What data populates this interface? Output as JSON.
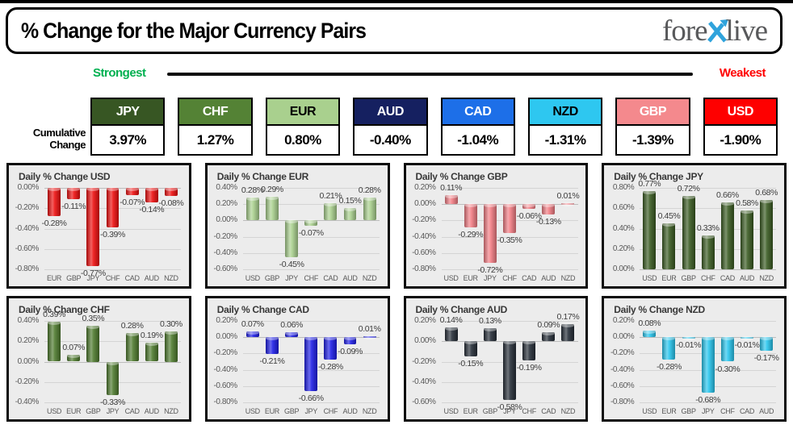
{
  "header": {
    "title": "% Change for the Major Currency Pairs",
    "logo": {
      "part1": "fore",
      "x": "X",
      "part2": "live",
      "x_color": "#2fa3dc",
      "text_color": "#58595b"
    }
  },
  "scale": {
    "strongest_label": "Strongest",
    "weakest_label": "Weakest",
    "strongest_color": "#00b050",
    "weakest_color": "#ff0000"
  },
  "cumulative": {
    "row_label_line1": "Cumulative",
    "row_label_line2": "Change",
    "cards": [
      {
        "code": "JPY",
        "value": "3.97%",
        "bg": "#375623",
        "fg": "#ffffff"
      },
      {
        "code": "CHF",
        "value": "1.27%",
        "bg": "#548235",
        "fg": "#ffffff"
      },
      {
        "code": "EUR",
        "value": "0.80%",
        "bg": "#a9d08e",
        "fg": "#000000"
      },
      {
        "code": "AUD",
        "value": "-0.40%",
        "bg": "#152060",
        "fg": "#ffffff"
      },
      {
        "code": "CAD",
        "value": "-1.04%",
        "bg": "#1d6fe8",
        "fg": "#ffffff"
      },
      {
        "code": "NZD",
        "value": "-1.31%",
        "bg": "#2ec7f0",
        "fg": "#000000"
      },
      {
        "code": "GBP",
        "value": "-1.39%",
        "bg": "#f4898d",
        "fg": "#ffffff"
      },
      {
        "code": "USD",
        "value": "-1.90%",
        "bg": "#fe0000",
        "fg": "#ffffff"
      }
    ]
  },
  "chart_data": [
    {
      "type": "bar",
      "title": "Daily % Change USD",
      "code": "usd",
      "bar_color": "#ed0f0f",
      "categories": [
        "EUR",
        "GBP",
        "JPY",
        "CHF",
        "CAD",
        "AUD",
        "NZD"
      ],
      "values": [
        -0.28,
        -0.11,
        -0.77,
        -0.39,
        -0.07,
        -0.14,
        -0.08
      ],
      "ticks": [
        0.0,
        -0.2,
        -0.4,
        -0.6,
        -0.8
      ],
      "ylim": [
        -0.8,
        0.0
      ],
      "tick_format": "percent",
      "grid": true,
      "legend": false
    },
    {
      "type": "bar",
      "title": "Daily % Change EUR",
      "code": "eur",
      "bar_color": "#a9d08e",
      "categories": [
        "USD",
        "GBP",
        "JPY",
        "CHF",
        "CAD",
        "AUD",
        "NZD"
      ],
      "values": [
        0.28,
        0.29,
        -0.45,
        -0.07,
        0.21,
        0.15,
        0.28
      ],
      "ticks": [
        0.4,
        0.2,
        0.0,
        -0.2,
        -0.4,
        -0.6
      ],
      "ylim": [
        -0.6,
        0.4
      ],
      "tick_format": "percent",
      "grid": true,
      "legend": false
    },
    {
      "type": "bar",
      "title": "Daily % Change GBP",
      "code": "gbp",
      "bar_color": "#f27d84",
      "categories": [
        "USD",
        "EUR",
        "JPY",
        "CHF",
        "CAD",
        "AUD",
        "NZD"
      ],
      "values": [
        0.11,
        -0.29,
        -0.72,
        -0.35,
        -0.06,
        -0.13,
        0.01
      ],
      "ticks": [
        0.2,
        0.0,
        -0.2,
        -0.4,
        -0.6,
        -0.8
      ],
      "ylim": [
        -0.8,
        0.2
      ],
      "tick_format": "percent",
      "grid": true,
      "legend": false
    },
    {
      "type": "bar",
      "title": "Daily % Change JPY",
      "code": "jpy",
      "bar_color": "#3a5b22",
      "categories": [
        "USD",
        "EUR",
        "GBP",
        "CHF",
        "CAD",
        "AUD",
        "NZD"
      ],
      "values": [
        0.77,
        0.45,
        0.72,
        0.33,
        0.66,
        0.58,
        0.68
      ],
      "ticks": [
        0.8,
        0.6,
        0.4,
        0.2,
        0.0
      ],
      "ylim": [
        0.0,
        0.8
      ],
      "tick_format": "percent",
      "grid": true,
      "legend": false
    },
    {
      "type": "bar",
      "title": "Daily % Change CHF",
      "code": "chf",
      "bar_color": "#4e7a2e",
      "categories": [
        "USD",
        "EUR",
        "GBP",
        "JPY",
        "CAD",
        "AUD",
        "NZD"
      ],
      "values": [
        0.39,
        0.07,
        0.35,
        -0.33,
        0.28,
        0.19,
        0.3
      ],
      "ticks": [
        0.4,
        0.2,
        0.0,
        -0.2,
        -0.4
      ],
      "ylim": [
        -0.4,
        0.4
      ],
      "tick_format": "percent",
      "grid": true,
      "legend": false
    },
    {
      "type": "bar",
      "title": "Daily % Change CAD",
      "code": "cad",
      "bar_color": "#1e1ee6",
      "categories": [
        "USD",
        "EUR",
        "GBP",
        "JPY",
        "CHF",
        "AUD",
        "NZD"
      ],
      "values": [
        0.07,
        -0.21,
        0.06,
        -0.66,
        -0.28,
        -0.09,
        0.01
      ],
      "ticks": [
        0.2,
        0.0,
        -0.2,
        -0.4,
        -0.6,
        -0.8
      ],
      "ylim": [
        -0.8,
        0.2
      ],
      "tick_format": "percent",
      "grid": true,
      "legend": false
    },
    {
      "type": "bar",
      "title": "Daily % Change AUD",
      "code": "aud",
      "bar_color": "#262e38",
      "categories": [
        "USD",
        "EUR",
        "GBP",
        "JPY",
        "CHF",
        "CAD",
        "NZD"
      ],
      "values": [
        0.14,
        -0.15,
        0.13,
        -0.58,
        -0.19,
        0.09,
        0.17
      ],
      "ticks": [
        0.2,
        0.0,
        -0.2,
        -0.4,
        -0.6
      ],
      "ylim": [
        -0.6,
        0.2
      ],
      "tick_format": "percent",
      "grid": true,
      "legend": false
    },
    {
      "type": "bar",
      "title": "Daily % Change NZD",
      "code": "nzd",
      "bar_color": "#29c6ee",
      "categories": [
        "USD",
        "EUR",
        "GBP",
        "JPY",
        "CHF",
        "CAD",
        "AUD"
      ],
      "values": [
        0.08,
        -0.28,
        -0.01,
        -0.68,
        -0.3,
        -0.01,
        -0.17
      ],
      "ticks": [
        0.2,
        0.0,
        -0.2,
        -0.4,
        -0.6,
        -0.8
      ],
      "ylim": [
        -0.8,
        0.2
      ],
      "tick_format": "percent",
      "grid": true,
      "legend": false
    }
  ]
}
